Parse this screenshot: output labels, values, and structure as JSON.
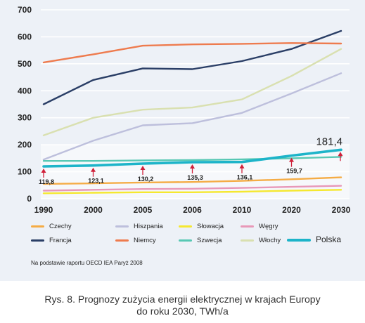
{
  "chart_data": {
    "type": "line",
    "x": [
      "1990",
      "2000",
      "2005",
      "2006",
      "2010",
      "2020",
      "2030"
    ],
    "ylim": [
      0,
      700
    ],
    "yticks": [
      "0",
      "100",
      "200",
      "300",
      "400",
      "500",
      "600",
      "700"
    ],
    "grid": true,
    "series": [
      {
        "name": "Czechy",
        "color": "#f5ac45",
        "values": [
          55,
          57,
          60,
          62,
          66,
          72,
          79
        ]
      },
      {
        "name": "Francja",
        "color": "#2a3e66",
        "values": [
          350,
          440,
          483,
          480,
          510,
          555,
          622
        ]
      },
      {
        "name": "Hiszpania",
        "color": "#bdbfdc",
        "values": [
          145,
          215,
          272,
          280,
          318,
          390,
          465
        ]
      },
      {
        "name": "Niemcy",
        "color": "#ee7b4e",
        "values": [
          505,
          535,
          567,
          572,
          574,
          577,
          575
        ]
      },
      {
        "name": "Słowacja",
        "color": "#f5e830",
        "values": [
          20,
          22,
          24,
          24,
          26,
          30,
          33
        ]
      },
      {
        "name": "Szwecja",
        "color": "#58c8b4",
        "values": [
          140,
          140,
          142,
          143,
          146,
          150,
          155
        ]
      },
      {
        "name": "Węgry",
        "color": "#e898b8",
        "values": [
          30,
          33,
          36,
          37,
          40,
          44,
          48
        ]
      },
      {
        "name": "Włochy",
        "color": "#d9e0b0",
        "values": [
          235,
          300,
          330,
          338,
          368,
          455,
          555
        ]
      },
      {
        "name": "Polska",
        "color": "#1db4c9",
        "values": [
          119.8,
          123.1,
          130.2,
          135.3,
          136.1,
          159.7,
          181.4
        ]
      }
    ],
    "annotations": {
      "series": "Polska",
      "labels": [
        "119,8",
        "123,1",
        "130,2",
        "135,3",
        "136,1",
        "159,7",
        "181,4"
      ]
    },
    "legend_layout": [
      [
        "Czechy",
        "Hiszpania",
        "Słowacja",
        "Węgry"
      ],
      [
        "Francja",
        "Niemcy",
        "Szwecja",
        "Włochy",
        "Polska"
      ]
    ],
    "legend_placement": "bottom"
  },
  "source_note": "Na podstawie raportu OECD IEA Paryż 2008",
  "caption_line1": "Rys. 8. Prognozy zużycia energii elektrycznej w krajach Europy",
  "caption_line2": "do roku 2030, TWh/a"
}
